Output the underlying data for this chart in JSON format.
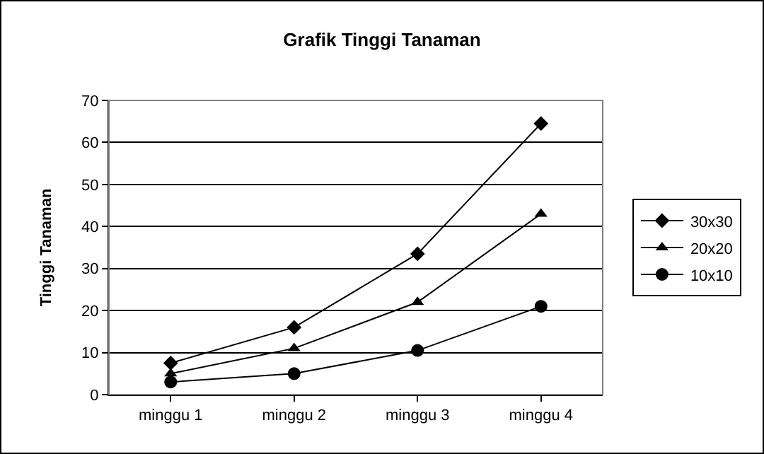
{
  "chart_data": {
    "type": "line",
    "title": "Grafik Tinggi Tanaman",
    "ylabel": "Tinggi Tanaman",
    "categories": [
      "minggu 1",
      "minggu 2",
      "minggu 3",
      "minggu 4"
    ],
    "series": [
      {
        "name": "30x30",
        "color": "#000000",
        "marker": "diamond",
        "values": [
          7.5,
          16,
          33.5,
          64.5
        ]
      },
      {
        "name": "20x20",
        "color": "#000000",
        "marker": "triangle",
        "values": [
          5,
          11,
          22,
          43
        ]
      },
      {
        "name": "10x10",
        "color": "#000000",
        "marker": "circle",
        "values": [
          3,
          5,
          10.5,
          21
        ]
      }
    ],
    "ylim": [
      0,
      70
    ],
    "yticks": [
      0,
      10,
      20,
      30,
      40,
      50,
      60,
      70
    ],
    "grid": "y",
    "legend": "right",
    "line_style": "solid"
  }
}
